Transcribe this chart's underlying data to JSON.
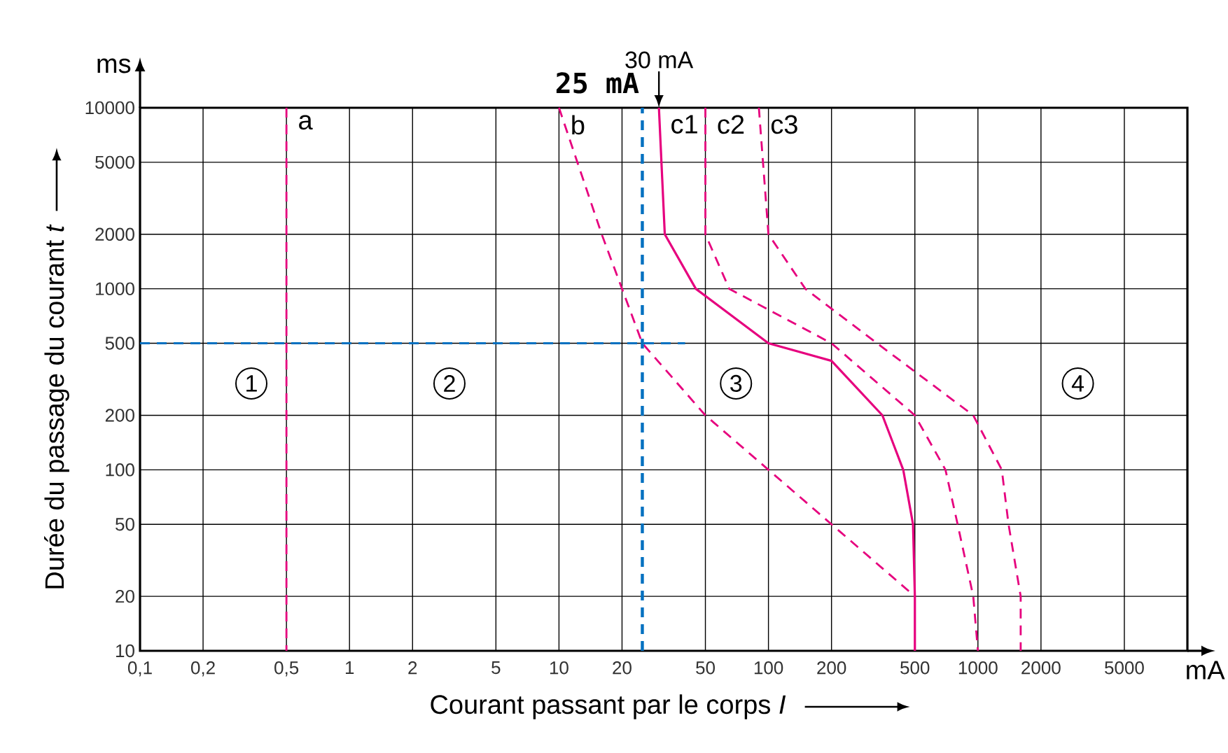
{
  "chart_data": {
    "type": "line",
    "xlabel": "Courant passant par le corps *I*",
    "ylabel": "Durée du passage du courant *t*",
    "log": "xy",
    "grid": true,
    "xlim": [
      0.1,
      10000
    ],
    "ylim": [
      10,
      10000
    ],
    "xticks": [
      {
        "value": 0.1,
        "label": "0,1"
      },
      {
        "value": 0.2,
        "label": "0,2"
      },
      {
        "value": 0.5,
        "label": "0,5"
      },
      1,
      2,
      5,
      10,
      20,
      50,
      100,
      200,
      500,
      1000,
      2000,
      5000
    ],
    "yticks": [
      10,
      20,
      50,
      100,
      200,
      500,
      1000,
      2000,
      5000,
      10000
    ],
    "series": [
      {
        "name": "a",
        "color": "#e6007e",
        "line_style": "dashed",
        "x": [
          0.5,
          0.5
        ],
        "values": [
          10000,
          10
        ]
      },
      {
        "name": "b",
        "color": "#e6007e",
        "line_style": "dashed",
        "x": [
          10,
          16,
          20,
          25,
          50,
          100,
          200,
          500
        ],
        "values": [
          10000,
          2000,
          1000,
          500,
          200,
          100,
          50,
          20
        ]
      },
      {
        "name": "c1",
        "color": "#e6007e",
        "line_style": "solid",
        "x": [
          30,
          32,
          45,
          100,
          200,
          350,
          440,
          490,
          500,
          500
        ],
        "values": [
          10000,
          2000,
          1000,
          500,
          400,
          200,
          100,
          50,
          20,
          10
        ]
      },
      {
        "name": "c2",
        "color": "#e6007e",
        "line_style": "dashed",
        "x": [
          50,
          50,
          65,
          200,
          500,
          700,
          800,
          950,
          1000
        ],
        "values": [
          10000,
          2000,
          1000,
          500,
          200,
          100,
          50,
          20,
          10
        ]
      },
      {
        "name": "c3",
        "color": "#e6007e",
        "line_style": "dashed",
        "x": [
          90,
          100,
          150,
          330,
          950,
          1300,
          1400,
          1600,
          1600
        ],
        "values": [
          10000,
          2000,
          1000,
          500,
          200,
          100,
          50,
          20,
          10
        ]
      },
      {
        "color": "#0070c0",
        "line_style": "dashed",
        "x": [
          0.1,
          40
        ],
        "values": [
          500,
          500
        ]
      }
    ],
    "ref_lines": [
      {
        "axis": "x",
        "value": 25,
        "label": "25 mA",
        "color": "#0070c0",
        "line_style": "dashed"
      }
    ],
    "annotations": [
      "ms",
      "mA",
      {
        "text": "1",
        "x": 0.34,
        "y": 300
      },
      {
        "text": "2",
        "x": 3,
        "y": 300
      },
      {
        "text": "3",
        "x": 70,
        "y": 300
      },
      {
        "text": "4",
        "x": 3000,
        "y": 300
      },
      {
        "text": "30 mA",
        "x": 30,
        "y": 10000
      }
    ]
  }
}
